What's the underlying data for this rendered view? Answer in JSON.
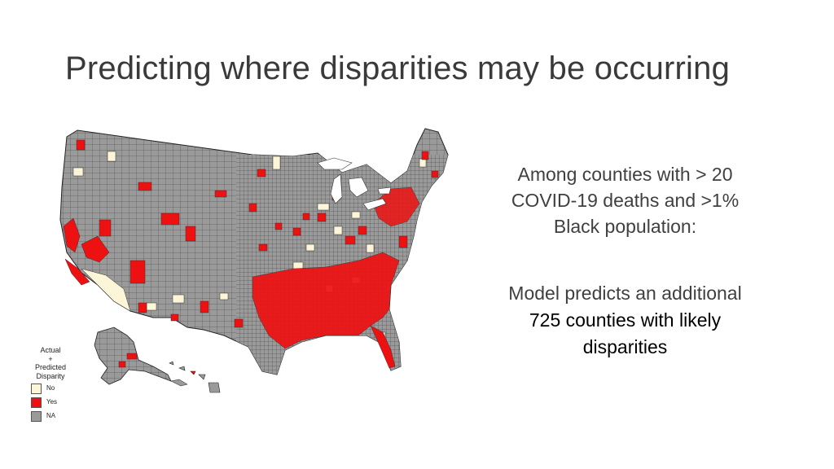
{
  "title": "Predicting where disparities may be occurring",
  "legend": {
    "title": [
      "Actual",
      "+",
      "Predicted",
      "Disparity"
    ],
    "items": [
      {
        "label": "No",
        "color": "#fdf5d8"
      },
      {
        "label": "Yes",
        "color": "#ee1111"
      },
      {
        "label": "NA",
        "color": "#9a9a9a"
      }
    ]
  },
  "colors": {
    "no": "#fdf5d8",
    "yes": "#ee1111",
    "na": "#9a9a9a",
    "border": "#222222"
  },
  "text": {
    "criteria": [
      "Among counties with > 20",
      "COVID-19 deaths and >1%",
      "Black population:"
    ],
    "prediction_intro": "Model predicts an additional",
    "prediction_highlight": [
      "725 counties with likely",
      "disparities"
    ]
  },
  "map": {
    "subject": "US counties disparity map"
  }
}
